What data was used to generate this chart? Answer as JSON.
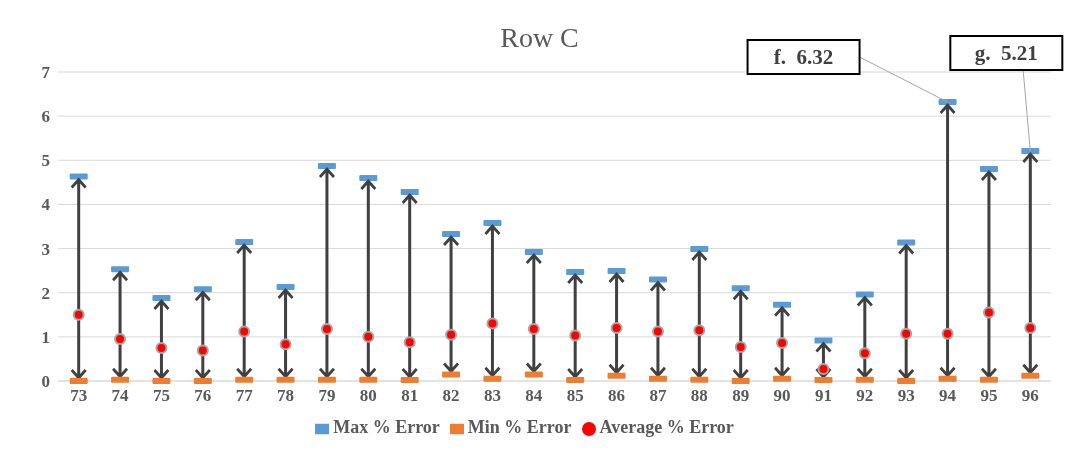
{
  "chart_data": {
    "type": "scatter",
    "title": "Row C",
    "categories": [
      "73",
      "74",
      "75",
      "76",
      "77",
      "78",
      "79",
      "80",
      "81",
      "82",
      "83",
      "84",
      "85",
      "86",
      "87",
      "88",
      "89",
      "90",
      "91",
      "92",
      "93",
      "94",
      "95",
      "96"
    ],
    "series": [
      {
        "name": "Max % Error",
        "color": "#5b9bd5",
        "values": [
          4.63,
          2.53,
          1.88,
          2.08,
          3.15,
          2.13,
          4.87,
          4.6,
          4.28,
          3.33,
          3.58,
          2.92,
          2.47,
          2.49,
          2.3,
          2.99,
          2.1,
          1.73,
          0.92,
          1.96,
          3.14,
          6.32,
          4.8,
          5.21
        ]
      },
      {
        "name": "Min % Error",
        "color": "#ed7d31",
        "values": [
          0,
          0.03,
          0,
          0,
          0.03,
          0.03,
          0.03,
          0.03,
          0.02,
          0.15,
          0.05,
          0.15,
          0.02,
          0.12,
          0.05,
          0.03,
          0,
          0.05,
          0.02,
          0.03,
          0,
          0.05,
          0.03,
          0.12
        ]
      },
      {
        "name": "Average % Error",
        "color": "#ff0000",
        "marker": "circle",
        "values": [
          1.5,
          0.95,
          0.75,
          0.69,
          1.12,
          0.83,
          1.18,
          1.0,
          0.88,
          1.05,
          1.3,
          1.18,
          1.03,
          1.2,
          1.12,
          1.15,
          0.77,
          0.86,
          0.27,
          0.63,
          1.07,
          1.07,
          1.55,
          1.2
        ]
      }
    ],
    "ylim": [
      0,
      7
    ],
    "yticks": [
      0,
      1,
      2,
      3,
      4,
      5,
      6,
      7
    ],
    "grid": "y",
    "legend": "bottom",
    "annotations": [
      {
        "text": "f.  6.32",
        "x": "94",
        "y": 6.32
      },
      {
        "text": "g.  5.21",
        "x": "96",
        "y": 5.21
      }
    ]
  }
}
